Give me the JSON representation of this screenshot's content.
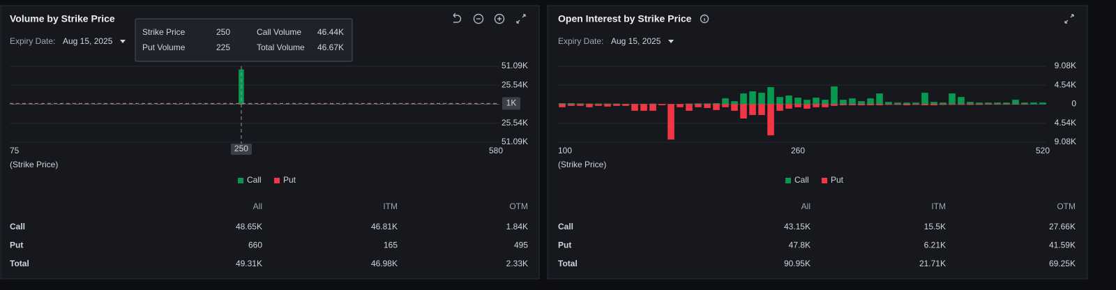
{
  "panels": [
    {
      "title": "Volume by Strike Price",
      "expiry_label": "Expiry Date:",
      "expiry": "Aug 15, 2025",
      "chart_data": {
        "type": "bar",
        "x_label": "(Strike Price)",
        "categories": [
          "75",
          null,
          null,
          null,
          null,
          null,
          null,
          null,
          null,
          null,
          null,
          null,
          null,
          null,
          null,
          null,
          null,
          null,
          null,
          null,
          null,
          null,
          null,
          null,
          null,
          "250",
          null,
          null,
          null,
          null,
          null,
          null,
          null,
          null,
          null,
          null,
          null,
          null,
          null,
          null,
          null,
          null,
          null,
          null,
          null,
          null,
          null,
          null,
          null,
          null,
          null,
          null,
          null,
          "580"
        ],
        "series": [
          {
            "name": "Call",
            "color": "#089950",
            "values": [
              60,
              40,
              50,
              30,
              40,
              60,
              30,
              40,
              50,
              30,
              40,
              60,
              40,
              30,
              50,
              40,
              30,
              60,
              40,
              50,
              40,
              30,
              50,
              40,
              60,
              46440,
              40,
              30,
              50,
              40,
              30,
              40,
              50,
              30,
              40,
              60,
              30,
              40,
              50,
              30,
              40,
              30,
              50,
              40,
              30,
              40,
              50,
              30,
              40,
              60,
              30,
              40,
              50,
              40
            ]
          },
          {
            "name": "Put",
            "color": "#f23645",
            "values": [
              -10,
              -15,
              -20,
              -10,
              -15,
              -10,
              -20,
              -15,
              -10,
              -20,
              -15,
              -10,
              -15,
              -20,
              -10,
              -15,
              -10,
              -20,
              -15,
              -10,
              -15,
              -10,
              -20,
              -15,
              -10,
              -225,
              -15,
              -10,
              -20,
              -10,
              -5,
              -5,
              -10,
              -5,
              -5,
              -5,
              -10,
              -5,
              -5,
              -5,
              -5,
              -5,
              -5,
              -5,
              -5,
              -5,
              -10,
              -5,
              -5,
              -5,
              -5,
              -5,
              -5,
              -5
            ]
          }
        ],
        "ylim": [
          -51090,
          51090
        ],
        "yticks": [
          {
            "value": 51090,
            "label": "51.09K"
          },
          {
            "value": 25540,
            "label": "25.54K"
          },
          {
            "value": -25540,
            "label": "25.54K"
          },
          {
            "value": -51090,
            "label": "51.09K"
          }
        ],
        "crosshair_y": {
          "value": 1000,
          "label": "1K"
        }
      },
      "tooltip": {
        "rows": [
          [
            "Strike Price",
            "250",
            "Call Volume",
            "46.44K"
          ],
          [
            "Put Volume",
            "225",
            "Total Volume",
            "46.67K"
          ]
        ]
      },
      "table": {
        "columns": [
          "All",
          "ITM",
          "OTM"
        ],
        "rows": [
          [
            "Call",
            "48.65K",
            "46.81K",
            "1.84K"
          ],
          [
            "Put",
            "660",
            "165",
            "495"
          ],
          [
            "Total",
            "49.31K",
            "46.98K",
            "2.33K"
          ]
        ]
      }
    },
    {
      "title": "Open Interest by Strike Price",
      "expiry_label": "Expiry Date:",
      "expiry": "Aug 15, 2025",
      "chart_data": {
        "type": "bar",
        "x_label": "(Strike Price)",
        "categories": [
          "100",
          null,
          null,
          null,
          null,
          null,
          null,
          null,
          null,
          null,
          null,
          null,
          null,
          null,
          null,
          null,
          null,
          null,
          null,
          null,
          null,
          null,
          null,
          null,
          null,
          null,
          "260",
          null,
          null,
          null,
          null,
          null,
          null,
          null,
          null,
          null,
          null,
          null,
          null,
          null,
          null,
          null,
          null,
          null,
          null,
          null,
          null,
          null,
          null,
          null,
          null,
          null,
          null,
          "520"
        ],
        "series": [
          {
            "name": "Call",
            "color": "#089950",
            "values": [
              200,
              200,
              150,
              100,
              100,
              100,
              100,
              50,
              50,
              50,
              100,
              0,
              0,
              0,
              100,
              150,
              150,
              200,
              1350,
              670,
              2520,
              3030,
              2690,
              4030,
              1680,
              2020,
              1510,
              1010,
              1510,
              1010,
              4200,
              1010,
              1340,
              670,
              1340,
              2520,
              500,
              340,
              340,
              340,
              2690,
              500,
              340,
              2520,
              1680,
              500,
              340,
              340,
              340,
              340,
              1010,
              340,
              340,
              340
            ]
          },
          {
            "name": "Put",
            "color": "#f23645",
            "values": [
              -670,
              -340,
              -340,
              -670,
              -340,
              -500,
              -340,
              -340,
              -1510,
              -1510,
              -1510,
              -200,
              -8400,
              -670,
              -1510,
              -670,
              -840,
              -1340,
              -670,
              -1510,
              -3360,
              -2520,
              -2520,
              -7390,
              -1510,
              -1010,
              -670,
              -1010,
              -670,
              -670,
              -340,
              -200,
              -200,
              -200,
              -200,
              -200,
              -100,
              -100,
              -200,
              -100,
              -200,
              -200,
              -100,
              -100,
              -100,
              -100,
              -100,
              -50,
              -50,
              -50,
              -50,
              -50,
              0,
              0
            ]
          }
        ],
        "ylim": [
          -9080,
          9080
        ],
        "yticks": [
          {
            "value": 9080,
            "label": "9.08K"
          },
          {
            "value": 4540,
            "label": "4.54K"
          },
          0,
          {
            "value": -4540,
            "label": "4.54K"
          },
          {
            "value": -9080,
            "label": "9.08K"
          }
        ]
      },
      "table": {
        "columns": [
          "All",
          "ITM",
          "OTM"
        ],
        "rows": [
          [
            "Call",
            "43.15K",
            "15.5K",
            "27.66K"
          ],
          [
            "Put",
            "47.8K",
            "6.21K",
            "41.59K"
          ],
          [
            "Total",
            "90.95K",
            "21.71K",
            "69.25K"
          ]
        ]
      }
    }
  ]
}
